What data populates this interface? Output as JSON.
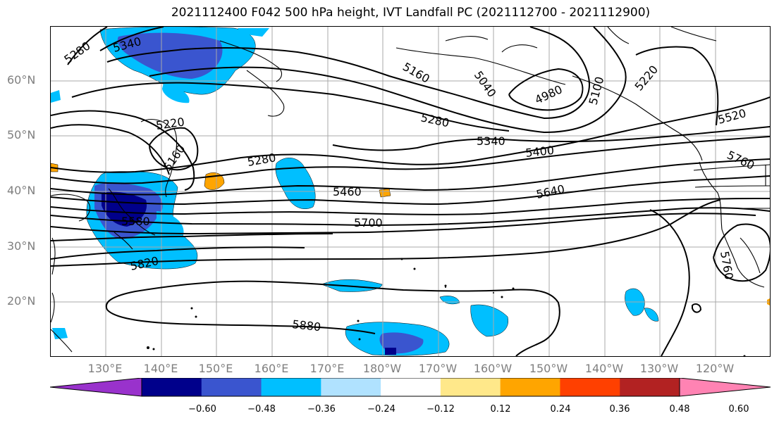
{
  "title": "2021112400 F042 500 hPa height, IVT Landfall PC (2021112700 - 2021112900)",
  "lat_labels": [
    "60°N",
    "50°N",
    "40°N",
    "30°N",
    "20°N"
  ],
  "lon_labels": [
    "130°E",
    "140°E",
    "150°E",
    "160°E",
    "170°E",
    "180°W",
    "170°W",
    "160°W",
    "150°W",
    "140°W",
    "130°W",
    "120°W"
  ],
  "contour_labels": [
    "5280",
    "5340",
    "5160",
    "5040",
    "4980",
    "5100",
    "5220",
    "5520",
    "5280",
    "5340",
    "5400",
    "5760",
    "5220",
    "5160",
    "5280",
    "5460",
    "5640",
    "5580",
    "5700",
    "5820",
    "5760",
    "5880"
  ],
  "colorbar": {
    "colors": [
      "#9932cc",
      "#00008b",
      "#3a55cf",
      "#00bfff",
      "#b0e2ff",
      "#ffffff",
      "#ffe88a",
      "#ffa500",
      "#ff4000",
      "#b22222",
      "#ff83b3"
    ],
    "tick_labels": [
      "−0.60",
      "−0.48",
      "−0.36",
      "−0.24",
      "−0.12",
      "0.12",
      "0.24",
      "0.36",
      "0.48",
      "0.60"
    ]
  }
}
